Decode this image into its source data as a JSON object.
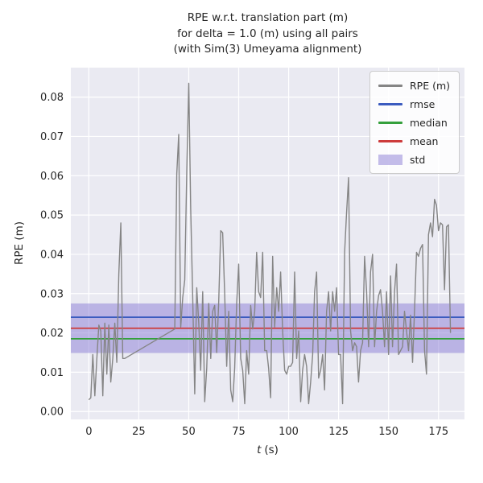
{
  "title_lines": [
    "RPE w.r.t. translation part (m)",
    "for delta = 1.0 (m) using all pairs",
    "(with Sim(3) Umeyama alignment)"
  ],
  "axes": {
    "xlabel_var": "t",
    "xlabel_rest": "(s)",
    "ylabel": "RPE (m)"
  },
  "colors": {
    "figure_bg": "#ffffff",
    "plot_bg": "#eaeaf2",
    "grid": "#ffffff",
    "text": "#262626"
  },
  "chart_data": {
    "type": "line",
    "title": "RPE w.r.t. translation part (m) for delta = 1.0 (m) using all pairs (with Sim(3) Umeyama alignment)",
    "xlabel": "t (s)",
    "ylabel": "RPE (m)",
    "xlim": [
      -9,
      188
    ],
    "ylim": [
      -0.002,
      0.0875
    ],
    "xticks": [
      0,
      25,
      50,
      75,
      100,
      125,
      150,
      175
    ],
    "yticks": [
      0,
      0.01,
      0.02,
      0.03,
      0.04,
      0.05,
      0.06,
      0.07,
      0.08
    ],
    "grid": true,
    "legend_position": "upper right",
    "legend_entries": [
      "RPE (m)",
      "rmse",
      "median",
      "mean",
      "std"
    ],
    "series": [
      {
        "name": "RPE (m)",
        "color": "#858585",
        "points": [
          [
            0,
            0.003
          ],
          [
            1,
            0.0035
          ],
          [
            2,
            0.0145
          ],
          [
            3,
            0.004
          ],
          [
            4,
            0.0135
          ],
          [
            5,
            0.022
          ],
          [
            6,
            0.0205
          ],
          [
            7,
            0.004
          ],
          [
            8,
            0.0225
          ],
          [
            9,
            0.0095
          ],
          [
            10,
            0.022
          ],
          [
            11,
            0.0075
          ],
          [
            12,
            0.0135
          ],
          [
            13,
            0.0225
          ],
          [
            14,
            0.0125
          ],
          [
            15,
            0.035
          ],
          [
            16,
            0.048
          ],
          [
            17,
            0.0135
          ],
          [
            18,
            0.0135
          ],
          [
            43,
            0.021
          ],
          [
            44,
            0.0605
          ],
          [
            45,
            0.0705
          ],
          [
            46,
            0.0215
          ],
          [
            47,
            0.029
          ],
          [
            48,
            0.0335
          ],
          [
            49,
            0.061
          ],
          [
            50,
            0.0835
          ],
          [
            51,
            0.0515
          ],
          [
            52,
            0.029
          ],
          [
            53,
            0.0045
          ],
          [
            54,
            0.0315
          ],
          [
            55,
            0.0225
          ],
          [
            56,
            0.0105
          ],
          [
            57,
            0.0305
          ],
          [
            58,
            0.0025
          ],
          [
            59,
            0.011
          ],
          [
            60,
            0.0275
          ],
          [
            61,
            0.0135
          ],
          [
            62,
            0.0255
          ],
          [
            63,
            0.027
          ],
          [
            64,
            0.015
          ],
          [
            65,
            0.028
          ],
          [
            66,
            0.046
          ],
          [
            67,
            0.0455
          ],
          [
            68,
            0.03
          ],
          [
            69,
            0.0115
          ],
          [
            70,
            0.0255
          ],
          [
            71,
            0.0055
          ],
          [
            72,
            0.0025
          ],
          [
            73,
            0.011
          ],
          [
            74,
            0.0275
          ],
          [
            75,
            0.0375
          ],
          [
            76,
            0.0135
          ],
          [
            77,
            0.0105
          ],
          [
            78,
            0.002
          ],
          [
            79,
            0.0155
          ],
          [
            80,
            0.0095
          ],
          [
            81,
            0.027
          ],
          [
            82,
            0.021
          ],
          [
            83,
            0.0255
          ],
          [
            84,
            0.0405
          ],
          [
            85,
            0.0305
          ],
          [
            86,
            0.029
          ],
          [
            87,
            0.0405
          ],
          [
            88,
            0.0155
          ],
          [
            89,
            0.0155
          ],
          [
            90,
            0.011
          ],
          [
            91,
            0.0035
          ],
          [
            92,
            0.0395
          ],
          [
            93,
            0.0215
          ],
          [
            94,
            0.0315
          ],
          [
            95,
            0.0255
          ],
          [
            96,
            0.0355
          ],
          [
            97,
            0.0205
          ],
          [
            98,
            0.0105
          ],
          [
            99,
            0.0095
          ],
          [
            100,
            0.0115
          ],
          [
            101,
            0.0115
          ],
          [
            102,
            0.0125
          ],
          [
            103,
            0.0355
          ],
          [
            104,
            0.0135
          ],
          [
            105,
            0.0205
          ],
          [
            106,
            0.0025
          ],
          [
            107,
            0.0105
          ],
          [
            108,
            0.0145
          ],
          [
            109,
            0.0115
          ],
          [
            110,
            0.002
          ],
          [
            111,
            0.0075
          ],
          [
            112,
            0.0145
          ],
          [
            113,
            0.0305
          ],
          [
            114,
            0.0355
          ],
          [
            115,
            0.0085
          ],
          [
            116,
            0.0105
          ],
          [
            117,
            0.0145
          ],
          [
            118,
            0.0055
          ],
          [
            119,
            0.0255
          ],
          [
            120,
            0.0305
          ],
          [
            121,
            0.0205
          ],
          [
            122,
            0.0305
          ],
          [
            123,
            0.0255
          ],
          [
            124,
            0.0315
          ],
          [
            125,
            0.0145
          ],
          [
            126,
            0.0145
          ],
          [
            127,
            0.002
          ],
          [
            128,
            0.0405
          ],
          [
            129,
            0.0505
          ],
          [
            130,
            0.0595
          ],
          [
            131,
            0.0205
          ],
          [
            132,
            0.0155
          ],
          [
            133,
            0.0175
          ],
          [
            134,
            0.0165
          ],
          [
            135,
            0.0075
          ],
          [
            136,
            0.0155
          ],
          [
            137,
            0.0175
          ],
          [
            138,
            0.0395
          ],
          [
            139,
            0.0305
          ],
          [
            140,
            0.0165
          ],
          [
            141,
            0.0355
          ],
          [
            142,
            0.04
          ],
          [
            143,
            0.0165
          ],
          [
            144,
            0.0255
          ],
          [
            145,
            0.0295
          ],
          [
            146,
            0.031
          ],
          [
            147,
            0.0255
          ],
          [
            148,
            0.0165
          ],
          [
            149,
            0.0305
          ],
          [
            150,
            0.0145
          ],
          [
            151,
            0.0345
          ],
          [
            152,
            0.0165
          ],
          [
            153,
            0.0305
          ],
          [
            154,
            0.0375
          ],
          [
            155,
            0.0145
          ],
          [
            156,
            0.0155
          ],
          [
            157,
            0.0165
          ],
          [
            158,
            0.0255
          ],
          [
            159,
            0.0205
          ],
          [
            160,
            0.0155
          ],
          [
            161,
            0.0245
          ],
          [
            162,
            0.0125
          ],
          [
            163,
            0.0255
          ],
          [
            164,
            0.0405
          ],
          [
            165,
            0.0395
          ],
          [
            166,
            0.0415
          ],
          [
            167,
            0.0425
          ],
          [
            168,
            0.0155
          ],
          [
            169,
            0.0095
          ],
          [
            170,
            0.045
          ],
          [
            171,
            0.048
          ],
          [
            172,
            0.0445
          ],
          [
            173,
            0.054
          ],
          [
            174,
            0.0525
          ],
          [
            175,
            0.046
          ],
          [
            176,
            0.048
          ],
          [
            177,
            0.0475
          ],
          [
            178,
            0.031
          ],
          [
            179,
            0.047
          ],
          [
            180,
            0.0475
          ],
          [
            181,
            0.02
          ]
        ]
      }
    ],
    "stat_lines": [
      {
        "name": "rmse",
        "value": 0.024,
        "color": "#3b5bbf"
      },
      {
        "name": "median",
        "value": 0.0185,
        "color": "#35a03c"
      },
      {
        "name": "mean",
        "value": 0.0212,
        "color": "#cd3b3b"
      }
    ],
    "band": {
      "name": "std",
      "low": 0.0149,
      "high": 0.0275,
      "color": "#8a7cd6",
      "opacity": 0.5
    }
  }
}
